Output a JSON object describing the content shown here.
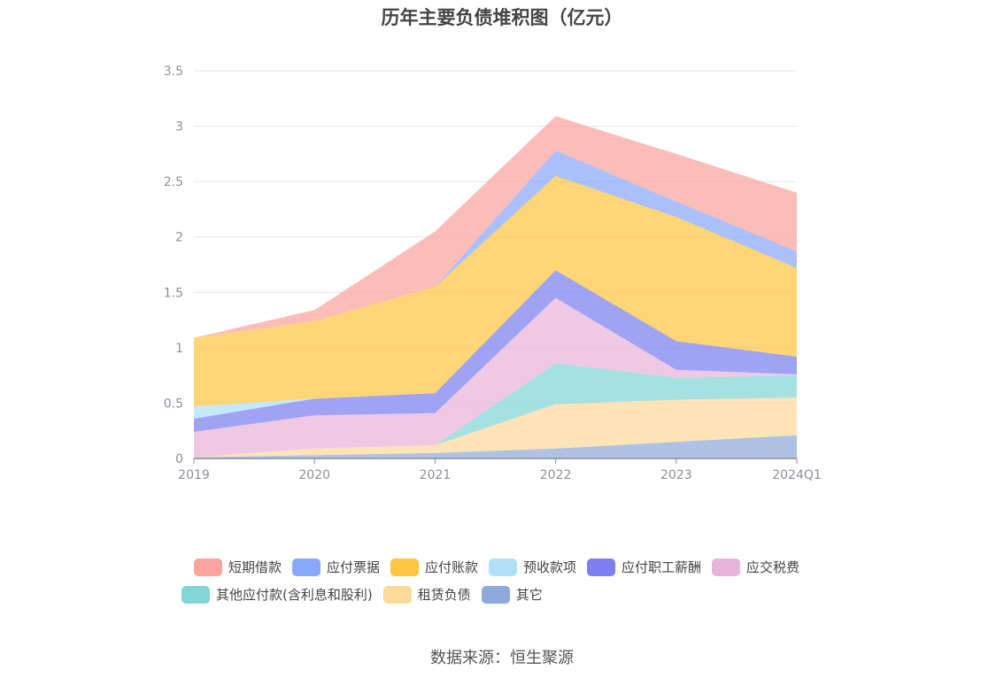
{
  "chart_data": {
    "type": "area",
    "stacked": true,
    "title": "历年主要负债堆积图（亿元）",
    "categories": [
      "2019",
      "2020",
      "2021",
      "2022",
      "2023",
      "2024Q1"
    ],
    "ylim": [
      0,
      3.5
    ],
    "yticks": [
      0,
      0.5,
      1,
      1.5,
      2,
      2.5,
      3,
      3.5
    ],
    "ytick_labels": [
      "0",
      "0.5",
      "1",
      "1.5",
      "2",
      "2.5",
      "3",
      "3.5"
    ],
    "grid": true,
    "legend_position": "bottom",
    "series": [
      {
        "name": "其它",
        "color": "#8eaadb",
        "values": [
          0.01,
          0.03,
          0.05,
          0.09,
          0.15,
          0.21
        ]
      },
      {
        "name": "租赁负债",
        "color": "#fdd99a",
        "values": [
          0.0,
          0.06,
          0.07,
          0.4,
          0.38,
          0.34
        ]
      },
      {
        "name": "其他应付款(含利息和股利)",
        "color": "#83d6d6",
        "values": [
          0.0,
          0.0,
          0.0,
          0.37,
          0.2,
          0.2
        ]
      },
      {
        "name": "应交税费",
        "color": "#e9b4d9",
        "values": [
          0.23,
          0.3,
          0.29,
          0.59,
          0.07,
          0.01
        ]
      },
      {
        "name": "应付职工薪酬",
        "color": "#7b7ff0",
        "values": [
          0.12,
          0.15,
          0.18,
          0.25,
          0.26,
          0.16
        ]
      },
      {
        "name": "预收款项",
        "color": "#aee0f8",
        "values": [
          0.11,
          0.0,
          0.0,
          0.0,
          0.0,
          0.0
        ]
      },
      {
        "name": "应付账款",
        "color": "#fdc640",
        "values": [
          0.62,
          0.7,
          0.96,
          0.85,
          1.12,
          0.8
        ]
      },
      {
        "name": "应付票据",
        "color": "#8aa8fb",
        "values": [
          0.0,
          0.0,
          0.0,
          0.23,
          0.14,
          0.15
        ]
      },
      {
        "name": "短期借款",
        "color": "#f9a49c",
        "values": [
          0.0,
          0.1,
          0.5,
          0.31,
          0.43,
          0.53
        ]
      }
    ]
  },
  "legend": {
    "row1": [
      {
        "label": "短期借款",
        "color": "#f9a49c"
      },
      {
        "label": "应付票据",
        "color": "#8aa8fb"
      },
      {
        "label": "应付账款",
        "color": "#fdc640"
      },
      {
        "label": "预收款项",
        "color": "#aee0f8"
      },
      {
        "label": "应付职工薪酬",
        "color": "#7b7ff0"
      },
      {
        "label": "应交税费",
        "color": "#e9b4d9"
      }
    ],
    "row2": [
      {
        "label": "其他应付款(含利息和股利)",
        "color": "#83d6d6"
      },
      {
        "label": "租赁负债",
        "color": "#fdd99a"
      },
      {
        "label": "其它",
        "color": "#8eaadb"
      }
    ]
  },
  "source": "数据来源：恒生聚源"
}
